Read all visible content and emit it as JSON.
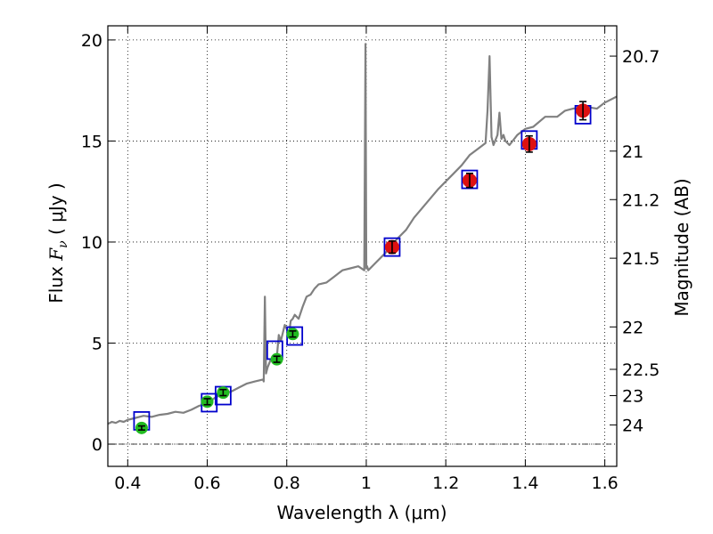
{
  "chart_data": {
    "type": "line",
    "xlabel": "Wavelength  λ (μm)",
    "ylabel": {
      "prefix": "Flux ",
      "symbol": "F",
      "subscript": "ν",
      "unit": " ( μJy )"
    },
    "ylabel_right": "Magnitude (AB)",
    "xlim": [
      0.35,
      1.63
    ],
    "ylim": [
      -1.1,
      20.7
    ],
    "x_ticks": [
      0.4,
      0.6,
      0.8,
      1.0,
      1.2,
      1.4,
      1.6
    ],
    "x_tick_labels": [
      "0.4",
      "0.6",
      "0.8",
      "1",
      "1.2",
      "1.4",
      "1.6"
    ],
    "y_ticks": [
      0,
      5,
      10,
      15,
      20
    ],
    "y_tick_labels": [
      "0",
      "5",
      "10",
      "15",
      "20"
    ],
    "right_ticks": [
      {
        "label": "20.7",
        "flux": 19.2
      },
      {
        "label": "21",
        "flux": 14.5
      },
      {
        "label": "21.2",
        "flux": 12.1
      },
      {
        "label": "21.5",
        "flux": 9.2
      },
      {
        "label": "22",
        "flux": 5.8
      },
      {
        "label": "22.5",
        "flux": 3.7
      },
      {
        "label": "23",
        "flux": 2.4
      },
      {
        "label": "24",
        "flux": 0.95
      }
    ],
    "grid": true,
    "zero_line": 0,
    "series": [
      {
        "name": "model spectrum",
        "color": "#808080",
        "x": [
          0.35,
          0.36,
          0.37,
          0.38,
          0.39,
          0.4,
          0.42,
          0.44,
          0.46,
          0.48,
          0.5,
          0.52,
          0.54,
          0.56,
          0.58,
          0.6,
          0.62,
          0.64,
          0.66,
          0.68,
          0.7,
          0.72,
          0.74,
          0.742,
          0.745,
          0.748,
          0.752,
          0.76,
          0.775,
          0.78,
          0.785,
          0.79,
          0.795,
          0.8,
          0.805,
          0.81,
          0.815,
          0.82,
          0.83,
          0.84,
          0.85,
          0.86,
          0.87,
          0.88,
          0.9,
          0.92,
          0.94,
          0.96,
          0.98,
          0.995,
          0.998,
          1.0,
          1.002,
          1.005,
          1.02,
          1.05,
          1.08,
          1.1,
          1.12,
          1.15,
          1.18,
          1.2,
          1.22,
          1.24,
          1.26,
          1.28,
          1.3,
          1.305,
          1.31,
          1.315,
          1.32,
          1.33,
          1.335,
          1.34,
          1.345,
          1.35,
          1.36,
          1.38,
          1.4,
          1.42,
          1.45,
          1.48,
          1.5,
          1.52,
          1.55,
          1.58,
          1.6,
          1.63
        ],
        "y": [
          1.0,
          1.1,
          1.05,
          1.15,
          1.1,
          1.2,
          1.3,
          1.4,
          1.35,
          1.45,
          1.5,
          1.6,
          1.55,
          1.7,
          1.9,
          2.0,
          2.3,
          2.5,
          2.6,
          2.8,
          3.0,
          3.1,
          3.2,
          3.1,
          7.3,
          3.5,
          3.8,
          4.2,
          4.3,
          5.4,
          5.1,
          5.5,
          5.9,
          5.7,
          5.4,
          6.1,
          6.2,
          6.4,
          6.2,
          6.8,
          7.3,
          7.4,
          7.7,
          7.9,
          8.0,
          8.3,
          8.6,
          8.7,
          8.8,
          8.6,
          19.8,
          8.7,
          8.8,
          8.6,
          8.9,
          9.5,
          10.2,
          10.6,
          11.2,
          11.9,
          12.6,
          13.0,
          13.4,
          13.8,
          14.3,
          14.6,
          14.9,
          16.5,
          19.2,
          15.2,
          14.8,
          15.3,
          16.4,
          15.1,
          15.3,
          15.0,
          14.8,
          15.3,
          15.6,
          15.7,
          16.2,
          16.2,
          16.5,
          16.6,
          16.7,
          16.6,
          16.9,
          17.2
        ]
      }
    ],
    "photometry_optical": {
      "color": "#22bb22",
      "x": [
        0.435,
        0.6,
        0.64,
        0.775,
        0.815
      ],
      "y": [
        0.8,
        2.1,
        2.55,
        4.2,
        5.45
      ],
      "err": [
        0.1,
        0.15,
        0.15,
        0.15,
        0.15
      ]
    },
    "photometry_nir": {
      "color": "#dd1111",
      "x": [
        1.065,
        1.26,
        1.41,
        1.545
      ],
      "y": [
        9.75,
        13.05,
        14.85,
        16.5
      ],
      "err": [
        0.3,
        0.35,
        0.4,
        0.45
      ]
    },
    "model_boxes": {
      "color": "#0000cc",
      "x": [
        0.435,
        0.605,
        0.64,
        0.77,
        0.82,
        1.065,
        1.26,
        1.41,
        1.545
      ],
      "y": [
        1.15,
        2.05,
        2.4,
        4.65,
        5.35,
        9.75,
        13.1,
        15.05,
        16.3
      ]
    }
  }
}
